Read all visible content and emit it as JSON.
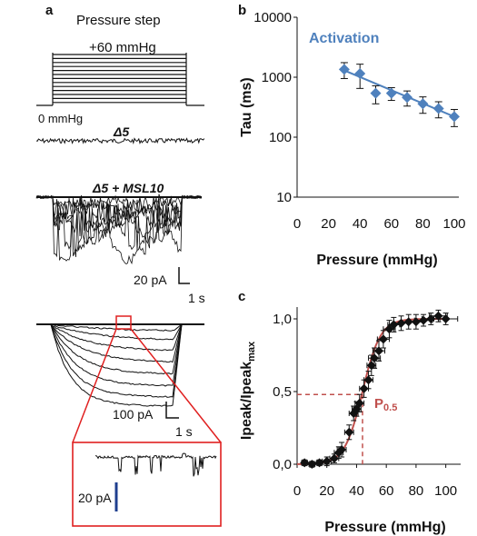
{
  "panels": {
    "a": {
      "letter": "a",
      "step_label": "Pressure step",
      "step_top": "+60 mmHg",
      "step_bottom": "0 mmHg",
      "trace1_label": "Δ5",
      "trace2_label": "Δ5 + MSL10",
      "scale1_current": "20 pA",
      "scale1_time": "1 s",
      "scale2_current": "100 pA",
      "scale2_time": "1 s",
      "inset_scale": "20 pA"
    },
    "b": {
      "letter": "b"
    },
    "c": {
      "letter": "c"
    }
  },
  "chart_data": [
    {
      "panel": "b",
      "type": "scatter",
      "title": "",
      "annotation": "Activation",
      "xlabel": "Pressure (mmHg)",
      "ylabel": "Tau (ms)",
      "xlim": [
        0,
        100
      ],
      "xticks": [
        "0",
        "20",
        "40",
        "60",
        "80",
        "100"
      ],
      "ylim": [
        10,
        10000
      ],
      "yscale": "log",
      "yticks": [
        "10",
        "100",
        "1000",
        "10000"
      ],
      "color": "#4f81bd",
      "series": [
        {
          "x": [
            30,
            40,
            50,
            60,
            70,
            80,
            90,
            100
          ],
          "y": [
            1350,
            1150,
            540,
            540,
            460,
            360,
            300,
            220
          ],
          "err": [
            400,
            500,
            180,
            130,
            130,
            110,
            90,
            70
          ]
        }
      ],
      "fit": {
        "x": [
          30,
          100
        ],
        "y": [
          1300,
          220
        ]
      }
    },
    {
      "panel": "c",
      "type": "scatter",
      "title": "",
      "xlabel": "Pressure (mmHg)",
      "ylabel": "Ipeak/Ipeak",
      "ylabel_sub": "max",
      "xlim": [
        0,
        110
      ],
      "xticks": [
        "0",
        "20",
        "40",
        "60",
        "80",
        "100"
      ],
      "ylim": [
        0,
        1.05
      ],
      "yticks": [
        "0,0",
        "0,5",
        "1,0"
      ],
      "p05_label": "P",
      "p05_sub": "0.5",
      "p05": {
        "x": 44,
        "y": 0.48
      },
      "fit_color": "#c0504d",
      "series": [
        {
          "x": [
            5,
            10,
            15,
            20,
            25,
            28,
            30,
            35,
            38,
            40,
            42,
            45,
            48,
            50,
            52,
            55,
            58,
            62,
            65,
            70,
            75,
            80,
            85,
            90,
            95,
            100
          ],
          "y": [
            0.01,
            0.0,
            0.01,
            0.02,
            0.04,
            0.08,
            0.1,
            0.22,
            0.35,
            0.38,
            0.42,
            0.52,
            0.58,
            0.68,
            0.73,
            0.78,
            0.86,
            0.93,
            0.96,
            0.97,
            0.98,
            0.98,
            0.99,
            1.0,
            1.02,
            1.0
          ],
          "xerr": [
            2,
            2,
            2,
            3,
            3,
            3,
            3,
            3,
            3,
            3,
            3,
            3,
            3,
            3,
            4,
            4,
            4,
            4,
            4,
            5,
            5,
            5,
            6,
            6,
            6,
            8
          ],
          "yerr": [
            0.02,
            0.02,
            0.02,
            0.03,
            0.03,
            0.04,
            0.05,
            0.05,
            0.05,
            0.05,
            0.06,
            0.06,
            0.06,
            0.07,
            0.07,
            0.07,
            0.06,
            0.06,
            0.05,
            0.05,
            0.05,
            0.05,
            0.04,
            0.04,
            0.04,
            0.04
          ]
        }
      ],
      "fit": {
        "type": "boltzmann",
        "x0": 44,
        "slope": 6,
        "xmin": 0,
        "xmax": 102
      }
    }
  ]
}
